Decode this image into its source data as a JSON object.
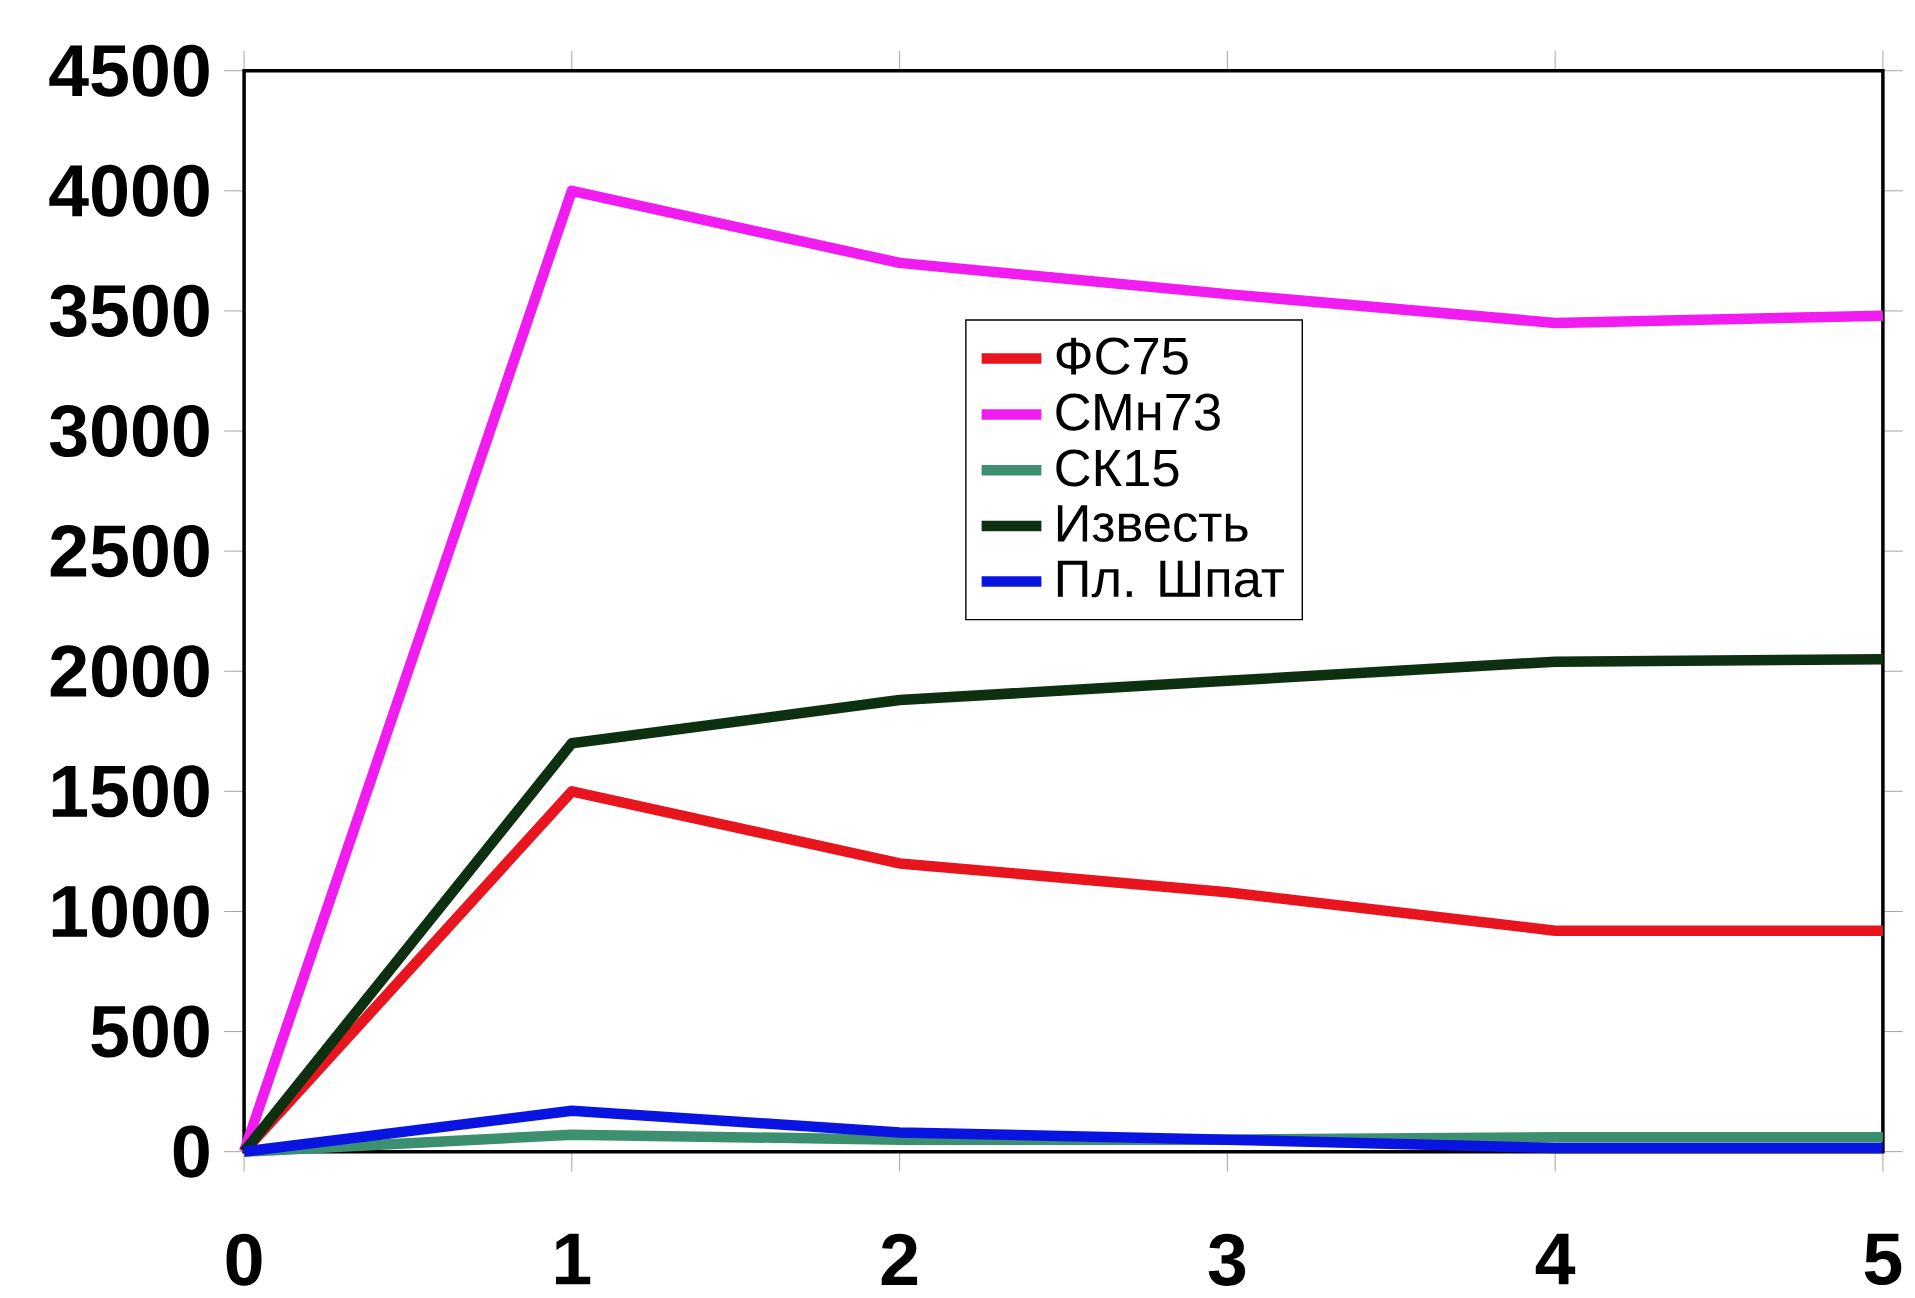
{
  "chart_data": {
    "type": "line",
    "x": [
      0,
      1,
      2,
      3,
      4,
      5
    ],
    "xlim": [
      0,
      5
    ],
    "xticks": [
      0,
      1,
      2,
      3,
      4,
      5
    ],
    "ylim": [
      0,
      4500
    ],
    "yticks": [
      0,
      500,
      1000,
      1500,
      2000,
      2500,
      3000,
      3500,
      4000,
      4500
    ],
    "legend": "center",
    "marker": "none",
    "line_style": "solid",
    "series": [
      {
        "name": "ФС75",
        "color": "#e8141e",
        "values": [
          0,
          1500,
          1200,
          1080,
          920,
          920
        ]
      },
      {
        "name": "СМн73",
        "color": "#f01cf0",
        "values": [
          0,
          4000,
          3700,
          3570,
          3450,
          3480
        ]
      },
      {
        "name": "СК15",
        "color": "#3c9070",
        "values": [
          0,
          70,
          50,
          50,
          60,
          60
        ]
      },
      {
        "name": "Известь",
        "color": "#0c3010",
        "values": [
          0,
          1700,
          1880,
          1960,
          2040,
          2050
        ]
      },
      {
        "name": "Пл. Шпат",
        "color": "#0a14e0",
        "values": [
          0,
          170,
          80,
          50,
          15,
          15
        ]
      }
    ]
  }
}
